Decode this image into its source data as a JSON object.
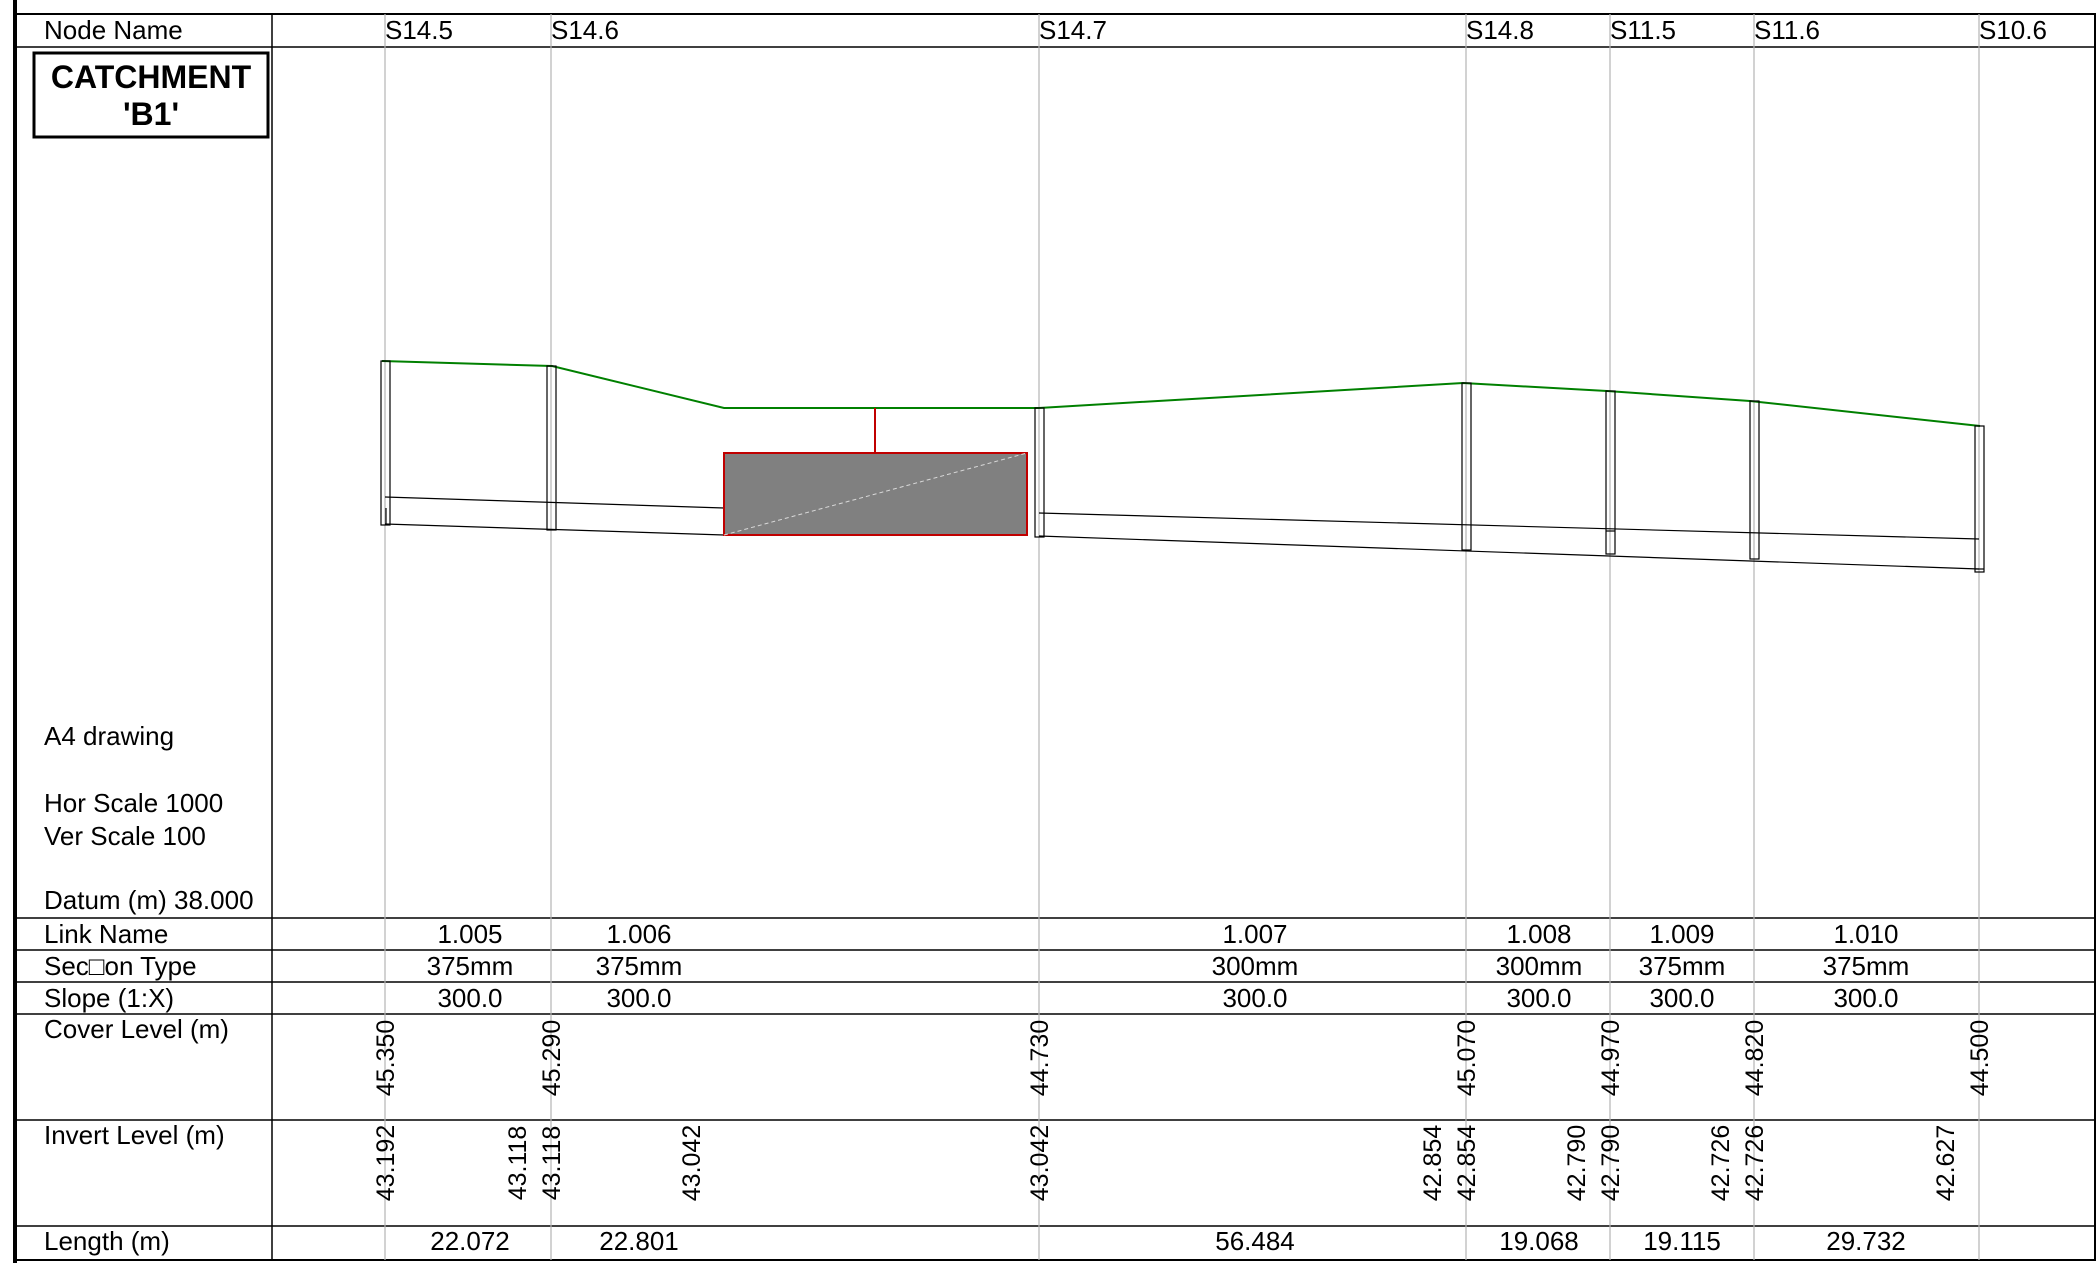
{
  "drawing": {
    "title_lines": [
      "CATCHMENT",
      "'B1'"
    ],
    "notes": {
      "sheet": "A4 drawing",
      "hor_scale": "Hor Scale 1000",
      "ver_scale": "Ver Scale 100",
      "datum": "Datum (m) 38.000"
    }
  },
  "row_labels": {
    "node_name": "Node Name",
    "link_name": "Link Name",
    "section_type": "Sec□on Type",
    "slope": "Slope (1:X)",
    "cover_level": "Cover Level (m)",
    "invert_level": "Invert Level (m)",
    "length": "Length (m)"
  },
  "nodes": [
    {
      "name": "S14.5",
      "cover": "45.350"
    },
    {
      "name": "S14.6",
      "cover": "45.290"
    },
    {
      "name": "S14.7",
      "cover": "44.730"
    },
    {
      "name": "S14.8",
      "cover": "45.070"
    },
    {
      "name": "S11.5",
      "cover": "44.970"
    },
    {
      "name": "S11.6",
      "cover": "44.820"
    },
    {
      "name": "S10.6",
      "cover": "44.500"
    }
  ],
  "links": [
    {
      "name": "1.005",
      "section": "375mm",
      "slope": "300.0",
      "length": "22.072"
    },
    {
      "name": "1.006",
      "section": "375mm",
      "slope": "300.0",
      "length": "22.801"
    },
    {
      "name": "1.007",
      "section": "300mm",
      "slope": "300.0",
      "length": "56.484"
    },
    {
      "name": "1.008",
      "section": "300mm",
      "slope": "300.0",
      "length": "19.068"
    },
    {
      "name": "1.009",
      "section": "375mm",
      "slope": "300.0",
      "length": "19.115"
    },
    {
      "name": "1.010",
      "section": "375mm",
      "slope": "300.0",
      "length": "29.732"
    }
  ],
  "invert_levels": [
    "43.192",
    "43.118",
    "43.118",
    "43.042",
    "43.042",
    "42.854",
    "42.854",
    "42.790",
    "42.790",
    "42.726",
    "42.726",
    "42.627"
  ],
  "colors": {
    "ground_line": "#008000",
    "storage_fill": "#808080",
    "storage_outline": "#c00000",
    "grid_line": "#b4b4b4"
  }
}
